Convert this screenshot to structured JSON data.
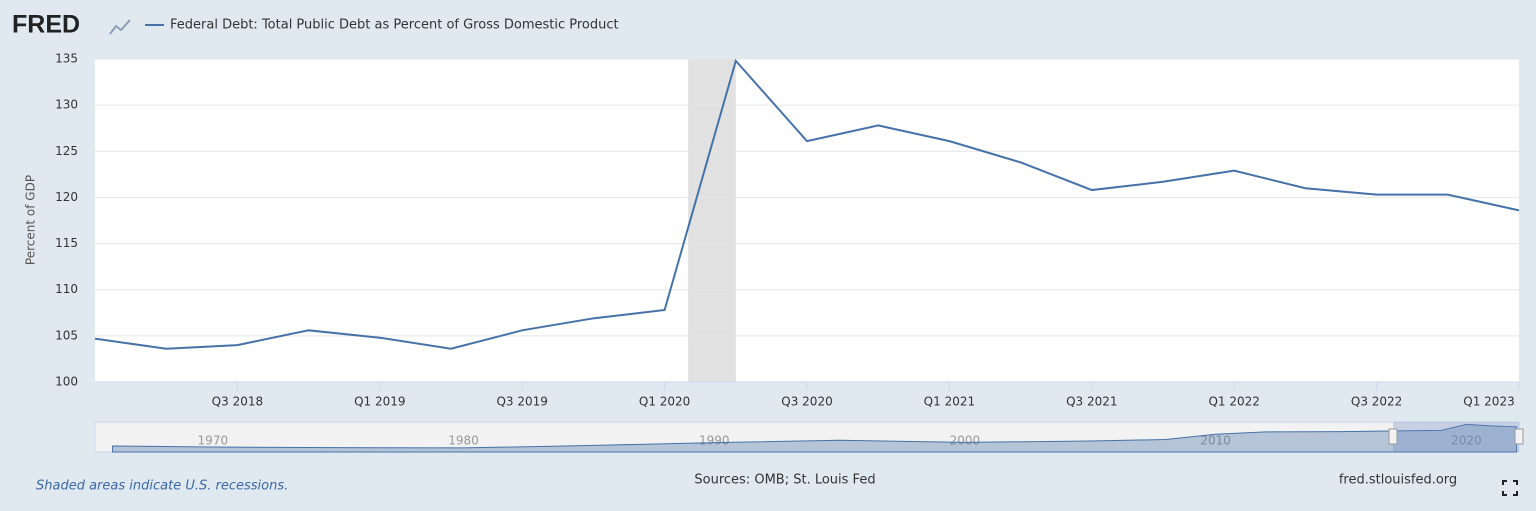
{
  "logo": "FRED",
  "chart_data": {
    "type": "line",
    "y_label": "Percent of GDP",
    "categories": [
      null,
      null,
      "Q3 2018",
      null,
      "Q1 2019",
      null,
      "Q3 2019",
      null,
      "Q1 2020",
      null,
      "Q3 2020",
      null,
      "Q1 2021",
      null,
      "Q3 2021",
      null,
      "Q1 2022",
      null,
      "Q3 2022",
      null,
      "Q1 2023"
    ],
    "series": [
      {
        "name": "Federal Debt: Total Public Debt as Percent of Gross Domestic Product",
        "color": "#4572a7",
        "values": [
          104.7,
          103.6,
          104.0,
          105.6,
          104.8,
          103.6,
          105.6,
          106.9,
          107.8,
          134.8,
          126.1,
          127.8,
          126.1,
          123.8,
          120.8,
          121.7,
          122.9,
          121.0,
          120.3,
          120.3,
          118.6
        ]
      }
    ],
    "ylim": [
      100,
      135
    ],
    "yticks": [
      100,
      105,
      110,
      115,
      120,
      125,
      130,
      135
    ],
    "grid": true,
    "recession_band": [
      8.33,
      9.0
    ],
    "recession_color": "#e1e1e1",
    "navigator": {
      "type": "area",
      "color": "#4572a7",
      "x": [
        1966,
        1970,
        1975,
        1980,
        1985,
        1990,
        1995,
        2000,
        2005,
        2008,
        2010,
        2012,
        2015,
        2019,
        2020,
        2021,
        2022
      ],
      "values": [
        40,
        36,
        33,
        32,
        42,
        54,
        64,
        55,
        61,
        67,
        89,
        99,
        100,
        105,
        130,
        124,
        120
      ],
      "xlim": [
        1965.3,
        2022.1
      ],
      "ylim": [
        15,
        140
      ],
      "xticks": [
        1970,
        1980,
        1990,
        2000,
        2010,
        2020
      ]
    },
    "note": "Shaded areas indicate U.S. recessions.",
    "source": "Sources: OMB; St. Louis Fed",
    "credit": "fred.stlouisfed.org"
  }
}
